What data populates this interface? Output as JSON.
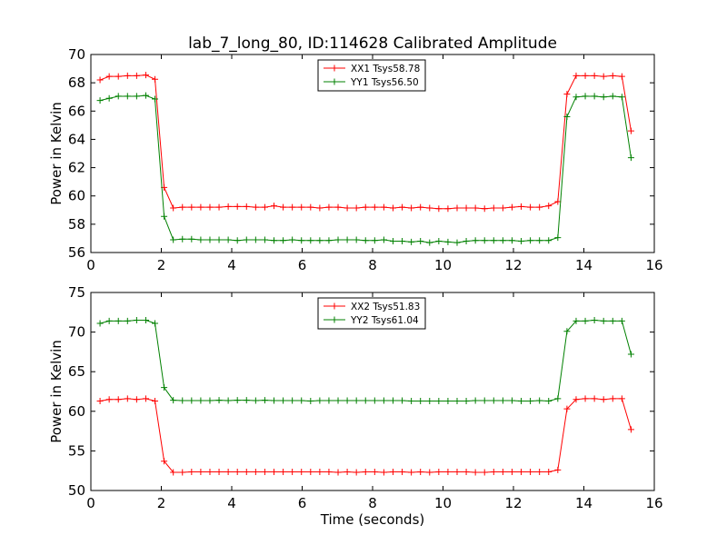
{
  "title": "lab_7_long_80, ID:114628 Calibrated Amplitude",
  "chart_data": [
    {
      "type": "line",
      "title": "lab_7_long_80, ID:114628 Calibrated Amplitude",
      "xlabel": "",
      "ylabel": "Power in Kelvin",
      "xlim": [
        0,
        16
      ],
      "ylim": [
        56,
        70
      ],
      "xticks": [
        0,
        2,
        4,
        6,
        8,
        10,
        12,
        14,
        16
      ],
      "yticks": [
        56,
        58,
        60,
        62,
        64,
        66,
        68,
        70
      ],
      "grid": false,
      "legend_position": "top-center",
      "x": [
        0.26,
        0.52,
        0.78,
        1.04,
        1.3,
        1.56,
        1.82,
        2.08,
        2.34,
        2.6,
        2.86,
        3.12,
        3.38,
        3.64,
        3.9,
        4.16,
        4.42,
        4.68,
        4.94,
        5.2,
        5.46,
        5.72,
        5.98,
        6.24,
        6.5,
        6.76,
        7.02,
        7.28,
        7.54,
        7.8,
        8.06,
        8.32,
        8.58,
        8.84,
        9.1,
        9.36,
        9.62,
        9.88,
        10.14,
        10.4,
        10.66,
        10.92,
        11.18,
        11.44,
        11.7,
        11.96,
        12.22,
        12.48,
        12.74,
        13.0,
        13.26,
        13.52,
        13.78,
        14.04,
        14.3,
        14.56,
        14.82,
        15.08,
        15.34
      ],
      "series": [
        {
          "name": "XX1 Tsys58.78",
          "color": "#ff0000",
          "values": [
            68.2,
            68.45,
            68.45,
            68.5,
            68.5,
            68.55,
            68.25,
            60.6,
            59.15,
            59.2,
            59.2,
            59.2,
            59.2,
            59.2,
            59.25,
            59.25,
            59.25,
            59.2,
            59.2,
            59.3,
            59.2,
            59.2,
            59.2,
            59.2,
            59.15,
            59.2,
            59.2,
            59.15,
            59.15,
            59.2,
            59.2,
            59.2,
            59.15,
            59.2,
            59.15,
            59.2,
            59.15,
            59.1,
            59.1,
            59.15,
            59.15,
            59.15,
            59.1,
            59.15,
            59.15,
            59.2,
            59.25,
            59.2,
            59.2,
            59.3,
            59.6,
            67.2,
            68.5,
            68.5,
            68.5,
            68.45,
            68.5,
            68.45,
            64.6
          ]
        },
        {
          "name": "YY1 Tsys56.50",
          "color": "#008000",
          "values": [
            66.75,
            66.9,
            67.05,
            67.05,
            67.05,
            67.1,
            66.85,
            58.55,
            56.9,
            56.95,
            56.95,
            56.9,
            56.9,
            56.9,
            56.9,
            56.85,
            56.9,
            56.9,
            56.9,
            56.85,
            56.85,
            56.9,
            56.85,
            56.85,
            56.85,
            56.85,
            56.9,
            56.9,
            56.9,
            56.85,
            56.85,
            56.9,
            56.8,
            56.8,
            56.75,
            56.8,
            56.7,
            56.8,
            56.75,
            56.7,
            56.8,
            56.85,
            56.85,
            56.85,
            56.85,
            56.85,
            56.8,
            56.85,
            56.85,
            56.85,
            57.05,
            65.6,
            67.0,
            67.05,
            67.05,
            67.0,
            67.05,
            67.0,
            62.7
          ]
        }
      ]
    },
    {
      "type": "line",
      "title": "",
      "xlabel": "Time (seconds)",
      "ylabel": "Power in Kelvin",
      "xlim": [
        0,
        16
      ],
      "ylim": [
        50,
        75
      ],
      "xticks": [
        0,
        2,
        4,
        6,
        8,
        10,
        12,
        14,
        16
      ],
      "yticks": [
        50,
        55,
        60,
        65,
        70,
        75
      ],
      "grid": false,
      "legend_position": "top-center",
      "x": [
        0.26,
        0.52,
        0.78,
        1.04,
        1.3,
        1.56,
        1.82,
        2.08,
        2.34,
        2.6,
        2.86,
        3.12,
        3.38,
        3.64,
        3.9,
        4.16,
        4.42,
        4.68,
        4.94,
        5.2,
        5.46,
        5.72,
        5.98,
        6.24,
        6.5,
        6.76,
        7.02,
        7.28,
        7.54,
        7.8,
        8.06,
        8.32,
        8.58,
        8.84,
        9.1,
        9.36,
        9.62,
        9.88,
        10.14,
        10.4,
        10.66,
        10.92,
        11.18,
        11.44,
        11.7,
        11.96,
        12.22,
        12.48,
        12.74,
        13.0,
        13.26,
        13.52,
        13.78,
        14.04,
        14.3,
        14.56,
        14.82,
        15.08,
        15.34
      ],
      "series": [
        {
          "name": "XX2 Tsys51.83",
          "color": "#ff0000",
          "values": [
            61.3,
            61.5,
            61.5,
            61.6,
            61.5,
            61.6,
            61.3,
            53.7,
            52.3,
            52.3,
            52.35,
            52.35,
            52.35,
            52.35,
            52.35,
            52.35,
            52.35,
            52.35,
            52.35,
            52.35,
            52.35,
            52.35,
            52.35,
            52.35,
            52.35,
            52.35,
            52.3,
            52.35,
            52.3,
            52.35,
            52.35,
            52.3,
            52.35,
            52.35,
            52.3,
            52.35,
            52.3,
            52.35,
            52.35,
            52.35,
            52.35,
            52.3,
            52.3,
            52.35,
            52.35,
            52.35,
            52.35,
            52.35,
            52.35,
            52.35,
            52.6,
            60.3,
            61.5,
            61.6,
            61.6,
            61.5,
            61.6,
            61.6,
            57.7
          ]
        },
        {
          "name": "YY2 Tsys61.04",
          "color": "#008000",
          "values": [
            71.1,
            71.4,
            71.4,
            71.4,
            71.5,
            71.5,
            71.1,
            63.0,
            61.4,
            61.35,
            61.35,
            61.35,
            61.35,
            61.4,
            61.35,
            61.4,
            61.4,
            61.35,
            61.4,
            61.35,
            61.35,
            61.35,
            61.35,
            61.3,
            61.35,
            61.35,
            61.35,
            61.35,
            61.35,
            61.35,
            61.35,
            61.35,
            61.35,
            61.35,
            61.3,
            61.3,
            61.3,
            61.3,
            61.3,
            61.3,
            61.3,
            61.35,
            61.35,
            61.35,
            61.35,
            61.35,
            61.3,
            61.3,
            61.35,
            61.3,
            61.6,
            70.1,
            71.4,
            71.4,
            71.5,
            71.4,
            71.4,
            71.4,
            67.2
          ]
        }
      ]
    }
  ]
}
